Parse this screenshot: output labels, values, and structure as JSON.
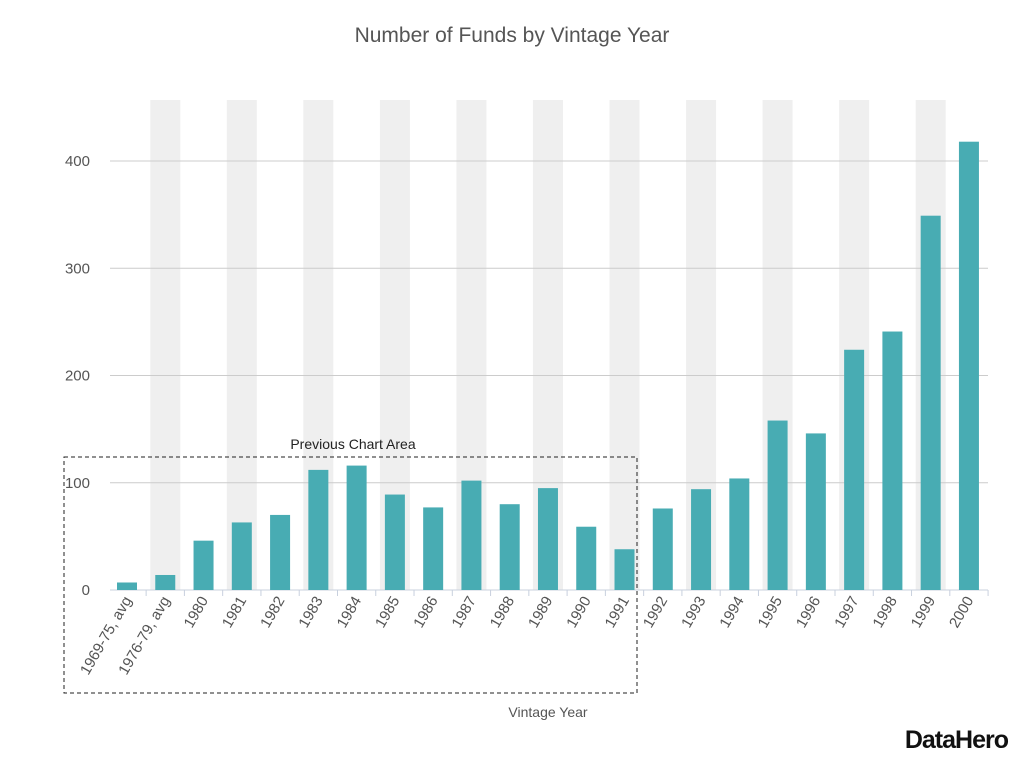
{
  "chart_data": {
    "type": "bar",
    "title": "Number of Funds by Vintage Year",
    "xlabel": "Vintage Year",
    "ylabel": "",
    "ylim": [
      0,
      450
    ],
    "yticks": [
      0,
      100,
      200,
      300,
      400
    ],
    "grid": true,
    "categories": [
      "1969-75, avg",
      "1976-79, avg",
      "1980",
      "1981",
      "1982",
      "1983",
      "1984",
      "1985",
      "1986",
      "1987",
      "1988",
      "1989",
      "1990",
      "1991",
      "1992",
      "1993",
      "1994",
      "1995",
      "1996",
      "1997",
      "1998",
      "1999",
      "2000"
    ],
    "values": [
      7,
      14,
      46,
      63,
      70,
      112,
      116,
      89,
      77,
      102,
      80,
      95,
      59,
      38,
      76,
      94,
      104,
      158,
      146,
      224,
      241,
      349,
      418
    ],
    "bar_color": "#48acb3",
    "band_color": "#efefef",
    "annotation": "Previous Chart Area"
  },
  "logo": "DataHero"
}
